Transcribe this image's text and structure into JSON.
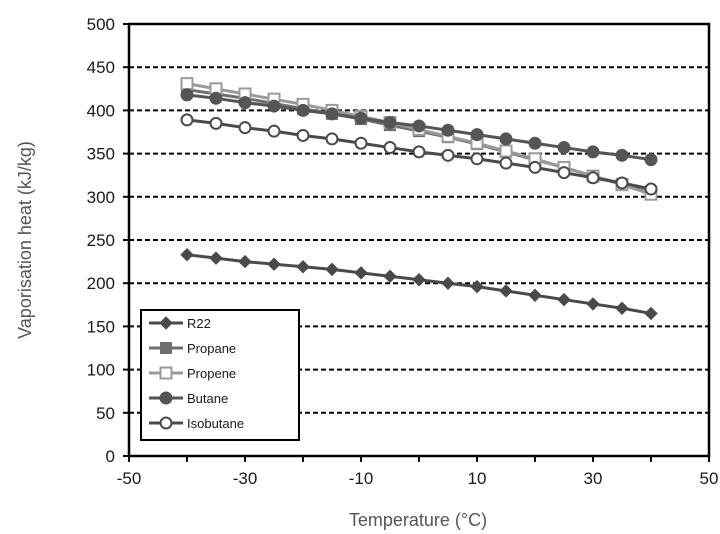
{
  "chart_data": {
    "type": "line",
    "xlabel": "Temperature (°C)",
    "ylabel": "Vaporisation heat (kJ/kg)",
    "xlim": [
      -50,
      50
    ],
    "ylim": [
      0,
      500
    ],
    "xticks": [
      -50,
      -30,
      -10,
      10,
      30,
      50
    ],
    "yticks": [
      0,
      50,
      100,
      150,
      200,
      250,
      300,
      350,
      400,
      450,
      500
    ],
    "grid": "horizontal dashed",
    "legend_position": "bottom-left",
    "x": [
      -40,
      -35,
      -30,
      -25,
      -20,
      -15,
      -10,
      -5,
      0,
      5,
      10,
      15,
      20,
      25,
      30,
      35,
      40
    ],
    "series": [
      {
        "name": "R22",
        "marker": "diamond-filled",
        "color": "#4a4a4a",
        "values": [
          233,
          229,
          225,
          222,
          219,
          216,
          212,
          208,
          204,
          200,
          196,
          191,
          186,
          181,
          176,
          171,
          165
        ]
      },
      {
        "name": "Propane",
        "marker": "square-filled",
        "color": "#6e6e6e",
        "values": [
          424,
          419,
          414,
          408,
          402,
          396,
          390,
          383,
          376,
          369,
          361,
          352,
          343,
          334,
          324,
          315,
          304
        ]
      },
      {
        "name": "Propene",
        "marker": "square-open",
        "color": "#9a9a9a",
        "values": [
          431,
          425,
          419,
          413,
          407,
          400,
          393,
          386,
          378,
          370,
          362,
          353,
          344,
          334,
          324,
          314,
          303
        ]
      },
      {
        "name": "Butane",
        "marker": "circle-filled",
        "color": "#555555",
        "values": [
          418,
          414,
          409,
          405,
          400,
          396,
          391,
          386,
          382,
          377,
          372,
          367,
          362,
          357,
          352,
          348,
          343
        ]
      },
      {
        "name": "Isobutane",
        "marker": "circle-open",
        "color": "#4a4a4a",
        "values": [
          389,
          385,
          380,
          376,
          371,
          367,
          362,
          357,
          352,
          348,
          344,
          339,
          334,
          328,
          322,
          316,
          309
        ]
      }
    ]
  }
}
